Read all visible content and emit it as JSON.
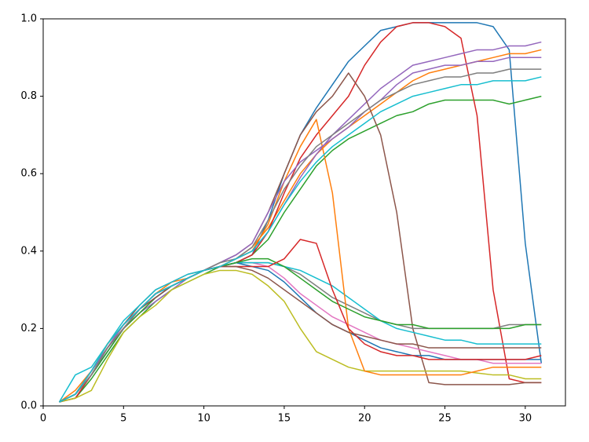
{
  "chart_data": {
    "type": "line",
    "x": [
      1,
      2,
      3,
      4,
      5,
      6,
      7,
      8,
      9,
      10,
      11,
      12,
      13,
      14,
      15,
      16,
      17,
      18,
      19,
      20,
      21,
      22,
      23,
      24,
      25,
      26,
      27,
      28,
      29,
      30,
      31
    ],
    "xlim": [
      0,
      32.5
    ],
    "xticks": [
      0,
      5,
      10,
      15,
      20,
      25,
      30
    ],
    "ylim": [
      0,
      1
    ],
    "yticks": [
      {
        "value": 0,
        "label": "0.0"
      },
      0.2,
      0.4,
      0.6,
      0.8,
      {
        "value": 1,
        "label": "1.0"
      }
    ],
    "grid": false,
    "series": [
      {
        "color": "#1f77b4",
        "values": [
          0.01,
          0.03,
          0.08,
          0.14,
          0.2,
          0.25,
          0.29,
          0.31,
          0.33,
          0.35,
          0.36,
          0.37,
          0.39,
          0.48,
          0.6,
          0.7,
          0.77,
          0.83,
          0.89,
          0.93,
          0.97,
          0.98,
          0.99,
          0.99,
          0.99,
          0.99,
          0.99,
          0.98,
          0.92,
          0.42,
          0.11
        ]
      },
      {
        "color": "#ff7f0e",
        "values": [
          0.01,
          0.04,
          0.09,
          0.16,
          0.21,
          0.25,
          0.29,
          0.32,
          0.33,
          0.35,
          0.36,
          0.38,
          0.41,
          0.46,
          0.53,
          0.6,
          0.65,
          0.69,
          0.72,
          0.75,
          0.78,
          0.81,
          0.84,
          0.86,
          0.87,
          0.88,
          0.89,
          0.9,
          0.91,
          0.91,
          0.92
        ]
      },
      {
        "color": "#2ca02c",
        "values": [
          0.01,
          0.02,
          0.07,
          0.13,
          0.19,
          0.23,
          0.27,
          0.3,
          0.32,
          0.34,
          0.36,
          0.37,
          0.39,
          0.43,
          0.5,
          0.56,
          0.62,
          0.66,
          0.69,
          0.71,
          0.73,
          0.75,
          0.76,
          0.78,
          0.79,
          0.79,
          0.79,
          0.79,
          0.78,
          0.79,
          0.8
        ]
      },
      {
        "color": "#d62728",
        "values": [
          0.01,
          0.02,
          0.08,
          0.15,
          0.21,
          0.25,
          0.29,
          0.31,
          0.33,
          0.35,
          0.36,
          0.37,
          0.39,
          0.45,
          0.55,
          0.64,
          0.7,
          0.75,
          0.8,
          0.88,
          0.94,
          0.98,
          0.99,
          0.99,
          0.98,
          0.95,
          0.75,
          0.3,
          0.07,
          0.06,
          0.06
        ]
      },
      {
        "color": "#9467bd",
        "values": [
          0.01,
          0.03,
          0.08,
          0.14,
          0.2,
          0.24,
          0.27,
          0.3,
          0.33,
          0.35,
          0.36,
          0.38,
          0.4,
          0.45,
          0.52,
          0.59,
          0.65,
          0.7,
          0.74,
          0.78,
          0.82,
          0.85,
          0.88,
          0.89,
          0.9,
          0.91,
          0.92,
          0.92,
          0.93,
          0.93,
          0.94
        ]
      },
      {
        "color": "#8c564b",
        "values": [
          0.01,
          0.03,
          0.09,
          0.16,
          0.21,
          0.26,
          0.3,
          0.32,
          0.34,
          0.35,
          0.37,
          0.39,
          0.42,
          0.5,
          0.6,
          0.7,
          0.76,
          0.8,
          0.86,
          0.8,
          0.7,
          0.5,
          0.2,
          0.06,
          0.055,
          0.055,
          0.055,
          0.055,
          0.055,
          0.06,
          0.06
        ]
      },
      {
        "color": "#e377c2",
        "values": [
          0.01,
          0.03,
          0.08,
          0.15,
          0.2,
          0.24,
          0.28,
          0.31,
          0.33,
          0.35,
          0.36,
          0.37,
          0.37,
          0.36,
          0.33,
          0.29,
          0.26,
          0.23,
          0.21,
          0.19,
          0.17,
          0.16,
          0.15,
          0.14,
          0.13,
          0.12,
          0.12,
          0.11,
          0.11,
          0.11,
          0.11
        ]
      },
      {
        "color": "#7f7f7f",
        "values": [
          0.01,
          0.03,
          0.09,
          0.15,
          0.21,
          0.25,
          0.29,
          0.31,
          0.33,
          0.35,
          0.36,
          0.37,
          0.37,
          0.37,
          0.36,
          0.34,
          0.31,
          0.28,
          0.26,
          0.24,
          0.22,
          0.21,
          0.2,
          0.2,
          0.2,
          0.2,
          0.2,
          0.2,
          0.21,
          0.21,
          0.21
        ]
      },
      {
        "color": "#bcbd22",
        "values": [
          0.01,
          0.02,
          0.04,
          0.12,
          0.19,
          0.23,
          0.26,
          0.3,
          0.32,
          0.34,
          0.35,
          0.35,
          0.34,
          0.31,
          0.27,
          0.2,
          0.14,
          0.12,
          0.1,
          0.09,
          0.09,
          0.09,
          0.09,
          0.09,
          0.09,
          0.09,
          0.085,
          0.08,
          0.08,
          0.07,
          0.07
        ]
      },
      {
        "color": "#17becf",
        "values": [
          0.01,
          0.08,
          0.1,
          0.16,
          0.22,
          0.26,
          0.3,
          0.32,
          0.34,
          0.35,
          0.36,
          0.37,
          0.37,
          0.37,
          0.36,
          0.35,
          0.33,
          0.31,
          0.28,
          0.25,
          0.22,
          0.2,
          0.19,
          0.18,
          0.17,
          0.17,
          0.16,
          0.16,
          0.16,
          0.16,
          0.16
        ]
      },
      {
        "color": "#1f77b4",
        "values": [
          0.01,
          0.03,
          0.08,
          0.15,
          0.2,
          0.25,
          0.28,
          0.31,
          0.33,
          0.35,
          0.36,
          0.37,
          0.36,
          0.35,
          0.32,
          0.28,
          0.24,
          0.21,
          0.19,
          0.17,
          0.15,
          0.14,
          0.13,
          0.13,
          0.12,
          0.12,
          0.12,
          0.12,
          0.12,
          0.12,
          0.12
        ]
      },
      {
        "color": "#ff7f0e",
        "values": [
          0.01,
          0.03,
          0.09,
          0.16,
          0.21,
          0.25,
          0.29,
          0.31,
          0.33,
          0.35,
          0.36,
          0.38,
          0.4,
          0.47,
          0.58,
          0.67,
          0.74,
          0.55,
          0.2,
          0.09,
          0.08,
          0.08,
          0.08,
          0.08,
          0.08,
          0.08,
          0.09,
          0.1,
          0.1,
          0.1,
          0.1
        ]
      },
      {
        "color": "#2ca02c",
        "values": [
          0.01,
          0.03,
          0.08,
          0.14,
          0.2,
          0.24,
          0.28,
          0.31,
          0.33,
          0.35,
          0.36,
          0.37,
          0.38,
          0.38,
          0.36,
          0.33,
          0.3,
          0.27,
          0.25,
          0.23,
          0.22,
          0.21,
          0.21,
          0.2,
          0.2,
          0.2,
          0.2,
          0.2,
          0.2,
          0.21,
          0.21
        ]
      },
      {
        "color": "#d62728",
        "values": [
          0.01,
          0.03,
          0.09,
          0.15,
          0.2,
          0.25,
          0.29,
          0.31,
          0.33,
          0.35,
          0.36,
          0.36,
          0.36,
          0.36,
          0.38,
          0.43,
          0.42,
          0.3,
          0.2,
          0.16,
          0.14,
          0.13,
          0.13,
          0.12,
          0.12,
          0.12,
          0.12,
          0.12,
          0.12,
          0.12,
          0.13
        ]
      },
      {
        "color": "#9467bd",
        "values": [
          0.01,
          0.03,
          0.09,
          0.15,
          0.21,
          0.25,
          0.29,
          0.31,
          0.33,
          0.35,
          0.37,
          0.39,
          0.42,
          0.5,
          0.58,
          0.63,
          0.66,
          0.69,
          0.72,
          0.76,
          0.79,
          0.83,
          0.86,
          0.87,
          0.88,
          0.88,
          0.89,
          0.89,
          0.9,
          0.9,
          0.9
        ]
      },
      {
        "color": "#8c564b",
        "values": [
          0.01,
          0.03,
          0.08,
          0.15,
          0.2,
          0.25,
          0.28,
          0.31,
          0.33,
          0.35,
          0.36,
          0.36,
          0.35,
          0.33,
          0.3,
          0.27,
          0.24,
          0.21,
          0.19,
          0.18,
          0.17,
          0.16,
          0.16,
          0.15,
          0.15,
          0.15,
          0.15,
          0.15,
          0.15,
          0.15,
          0.15
        ]
      },
      {
        "color": "#7f7f7f",
        "values": [
          0.01,
          0.03,
          0.08,
          0.15,
          0.2,
          0.25,
          0.29,
          0.31,
          0.33,
          0.35,
          0.37,
          0.38,
          0.41,
          0.48,
          0.56,
          0.62,
          0.67,
          0.7,
          0.73,
          0.76,
          0.79,
          0.81,
          0.83,
          0.84,
          0.85,
          0.85,
          0.86,
          0.86,
          0.87,
          0.87,
          0.87
        ]
      },
      {
        "color": "#17becf",
        "values": [
          0.01,
          0.03,
          0.09,
          0.16,
          0.21,
          0.25,
          0.29,
          0.31,
          0.33,
          0.35,
          0.36,
          0.38,
          0.4,
          0.45,
          0.52,
          0.58,
          0.63,
          0.67,
          0.7,
          0.73,
          0.76,
          0.78,
          0.8,
          0.81,
          0.82,
          0.83,
          0.83,
          0.84,
          0.84,
          0.84,
          0.85
        ]
      }
    ]
  }
}
